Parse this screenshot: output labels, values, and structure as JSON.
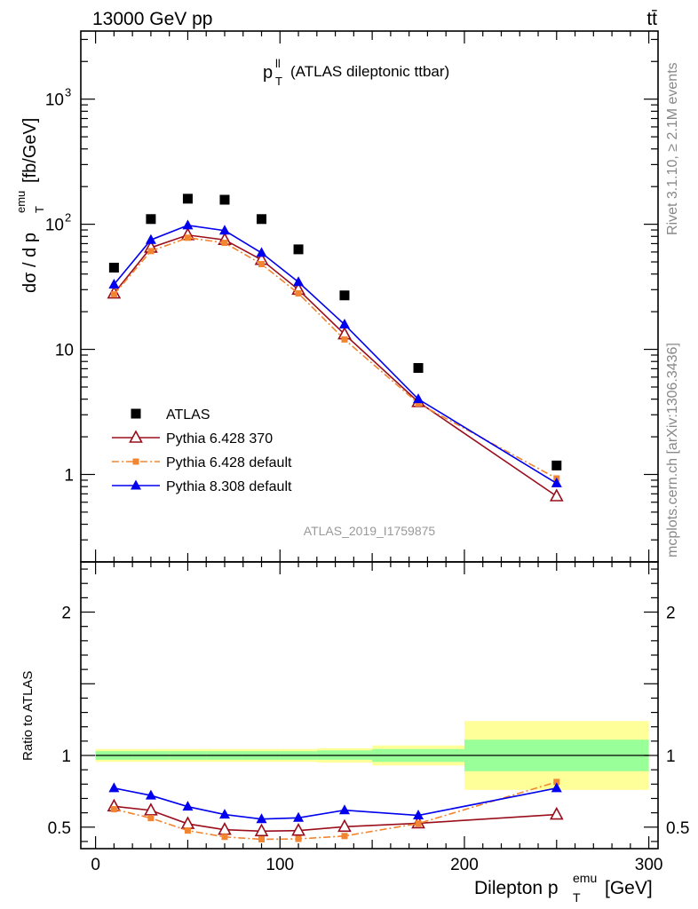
{
  "header": {
    "energy_label": "13000 GeV pp",
    "process_label": "tt̄",
    "observable_main": "p",
    "observable_sup": "ll",
    "observable_sub": "T",
    "observable_rest": "(ATLAS dileptonic ttbar)",
    "analysis_id": "ATLAS_2019_I1759875",
    "side_rivet": "Rivet 3.1.10, ≥ 2.1M events",
    "side_mcplots": "mcplots.cern.ch [arXiv:1306.3436]"
  },
  "axes": {
    "ylabel_main_pre": "dσ / d p",
    "ylabel_main_sup": "emu",
    "ylabel_main_sub": "T",
    "ylabel_main_post": "[fb/GeV]",
    "ylabel_ratio": "Ratio to ATLAS",
    "xlabel_pre": "Dilepton p",
    "xlabel_sup": "emu",
    "xlabel_sub": "T",
    "xlabel_post": "[GeV]",
    "x_ticks": [
      "0",
      "100",
      "200",
      "300"
    ],
    "y_ticks_main": [
      {
        "v": 1,
        "label": "1"
      },
      {
        "v": 10,
        "label": "10"
      },
      {
        "v": 100,
        "label": "10",
        "sup": "2"
      },
      {
        "v": 1000,
        "label": "10",
        "sup": "3"
      }
    ],
    "y_ticks_ratio": [
      {
        "v": 0.5,
        "label": "0.5"
      },
      {
        "v": 1,
        "label": "1"
      },
      {
        "v": 2,
        "label": "2"
      }
    ]
  },
  "chart_data": [
    {
      "type": "scatter",
      "panel": "main",
      "title": "",
      "xlabel": "Dilepton pT emu [GeV]",
      "ylabel": "dσ / d pT emu [fb/GeV]",
      "xlim": [
        -8,
        305
      ],
      "ylim": [
        0.2,
        3500
      ],
      "log_y": true,
      "x": [
        10,
        30,
        50,
        70,
        90,
        110,
        135,
        175,
        250
      ],
      "bin_edges": [
        0,
        20,
        40,
        60,
        80,
        100,
        120,
        150,
        200,
        300
      ],
      "series": [
        {
          "name": "ATLAS",
          "color": "#000000",
          "marker": "square",
          "line": "none",
          "values": [
            45,
            110,
            160,
            157,
            110,
            63,
            27,
            7.1,
            1.18
          ]
        },
        {
          "name": "Pythia 6.428 370",
          "color": "#9a0e1c",
          "marker": "open-triangle",
          "line": "solid",
          "values": [
            28,
            65,
            82,
            75,
            52,
            30,
            13.2,
            3.8,
            0.67
          ]
        },
        {
          "name": "Pythia 6.428 default",
          "color": "#f2852f",
          "marker": "small-square",
          "line": "dashdot",
          "values": [
            27.5,
            61,
            78,
            71,
            48,
            28,
            12,
            3.7,
            0.93
          ]
        },
        {
          "name": "Pythia 8.308 default",
          "color": "#0000ee",
          "marker": "filled-triangle",
          "line": "solid",
          "values": [
            33,
            75,
            98,
            89,
            59,
            34.5,
            15.8,
            4.0,
            0.85
          ]
        }
      ],
      "legend": "middle-left"
    },
    {
      "type": "line",
      "panel": "ratio",
      "ylabel": "Ratio to ATLAS",
      "xlim": [
        -8,
        305
      ],
      "ylim": [
        0.35,
        2.35
      ],
      "x": [
        10,
        30,
        50,
        70,
        90,
        110,
        135,
        175,
        250
      ],
      "reference_line": 1,
      "bands": {
        "bin_edges": [
          0,
          20,
          40,
          60,
          80,
          100,
          120,
          150,
          200,
          300
        ],
        "green": [
          [
            0.97,
            1.03
          ],
          [
            0.97,
            1.03
          ],
          [
            0.97,
            1.03
          ],
          [
            0.97,
            1.03
          ],
          [
            0.97,
            1.03
          ],
          [
            0.97,
            1.03
          ],
          [
            0.97,
            1.035
          ],
          [
            0.955,
            1.045
          ],
          [
            0.89,
            1.11
          ]
        ],
        "yellow": [
          [
            0.955,
            1.045
          ],
          [
            0.955,
            1.045
          ],
          [
            0.955,
            1.045
          ],
          [
            0.955,
            1.045
          ],
          [
            0.955,
            1.045
          ],
          [
            0.955,
            1.045
          ],
          [
            0.95,
            1.05
          ],
          [
            0.93,
            1.07
          ],
          [
            0.76,
            1.24
          ]
        ]
      },
      "series": [
        {
          "name": "Pythia 6.428 370",
          "color": "#9a0e1c",
          "values": [
            0.645,
            0.617,
            0.523,
            0.482,
            0.472,
            0.476,
            0.503,
            0.527,
            0.588
          ]
        },
        {
          "name": "Pythia 6.428 default",
          "color": "#f2852f",
          "values": [
            0.625,
            0.563,
            0.476,
            0.432,
            0.415,
            0.418,
            0.438,
            0.525,
            0.815
          ]
        },
        {
          "name": "Pythia 8.308 default",
          "color": "#0000ee",
          "values": [
            0.772,
            0.721,
            0.643,
            0.588,
            0.556,
            0.565,
            0.618,
            0.582,
            0.772
          ]
        }
      ]
    }
  ]
}
